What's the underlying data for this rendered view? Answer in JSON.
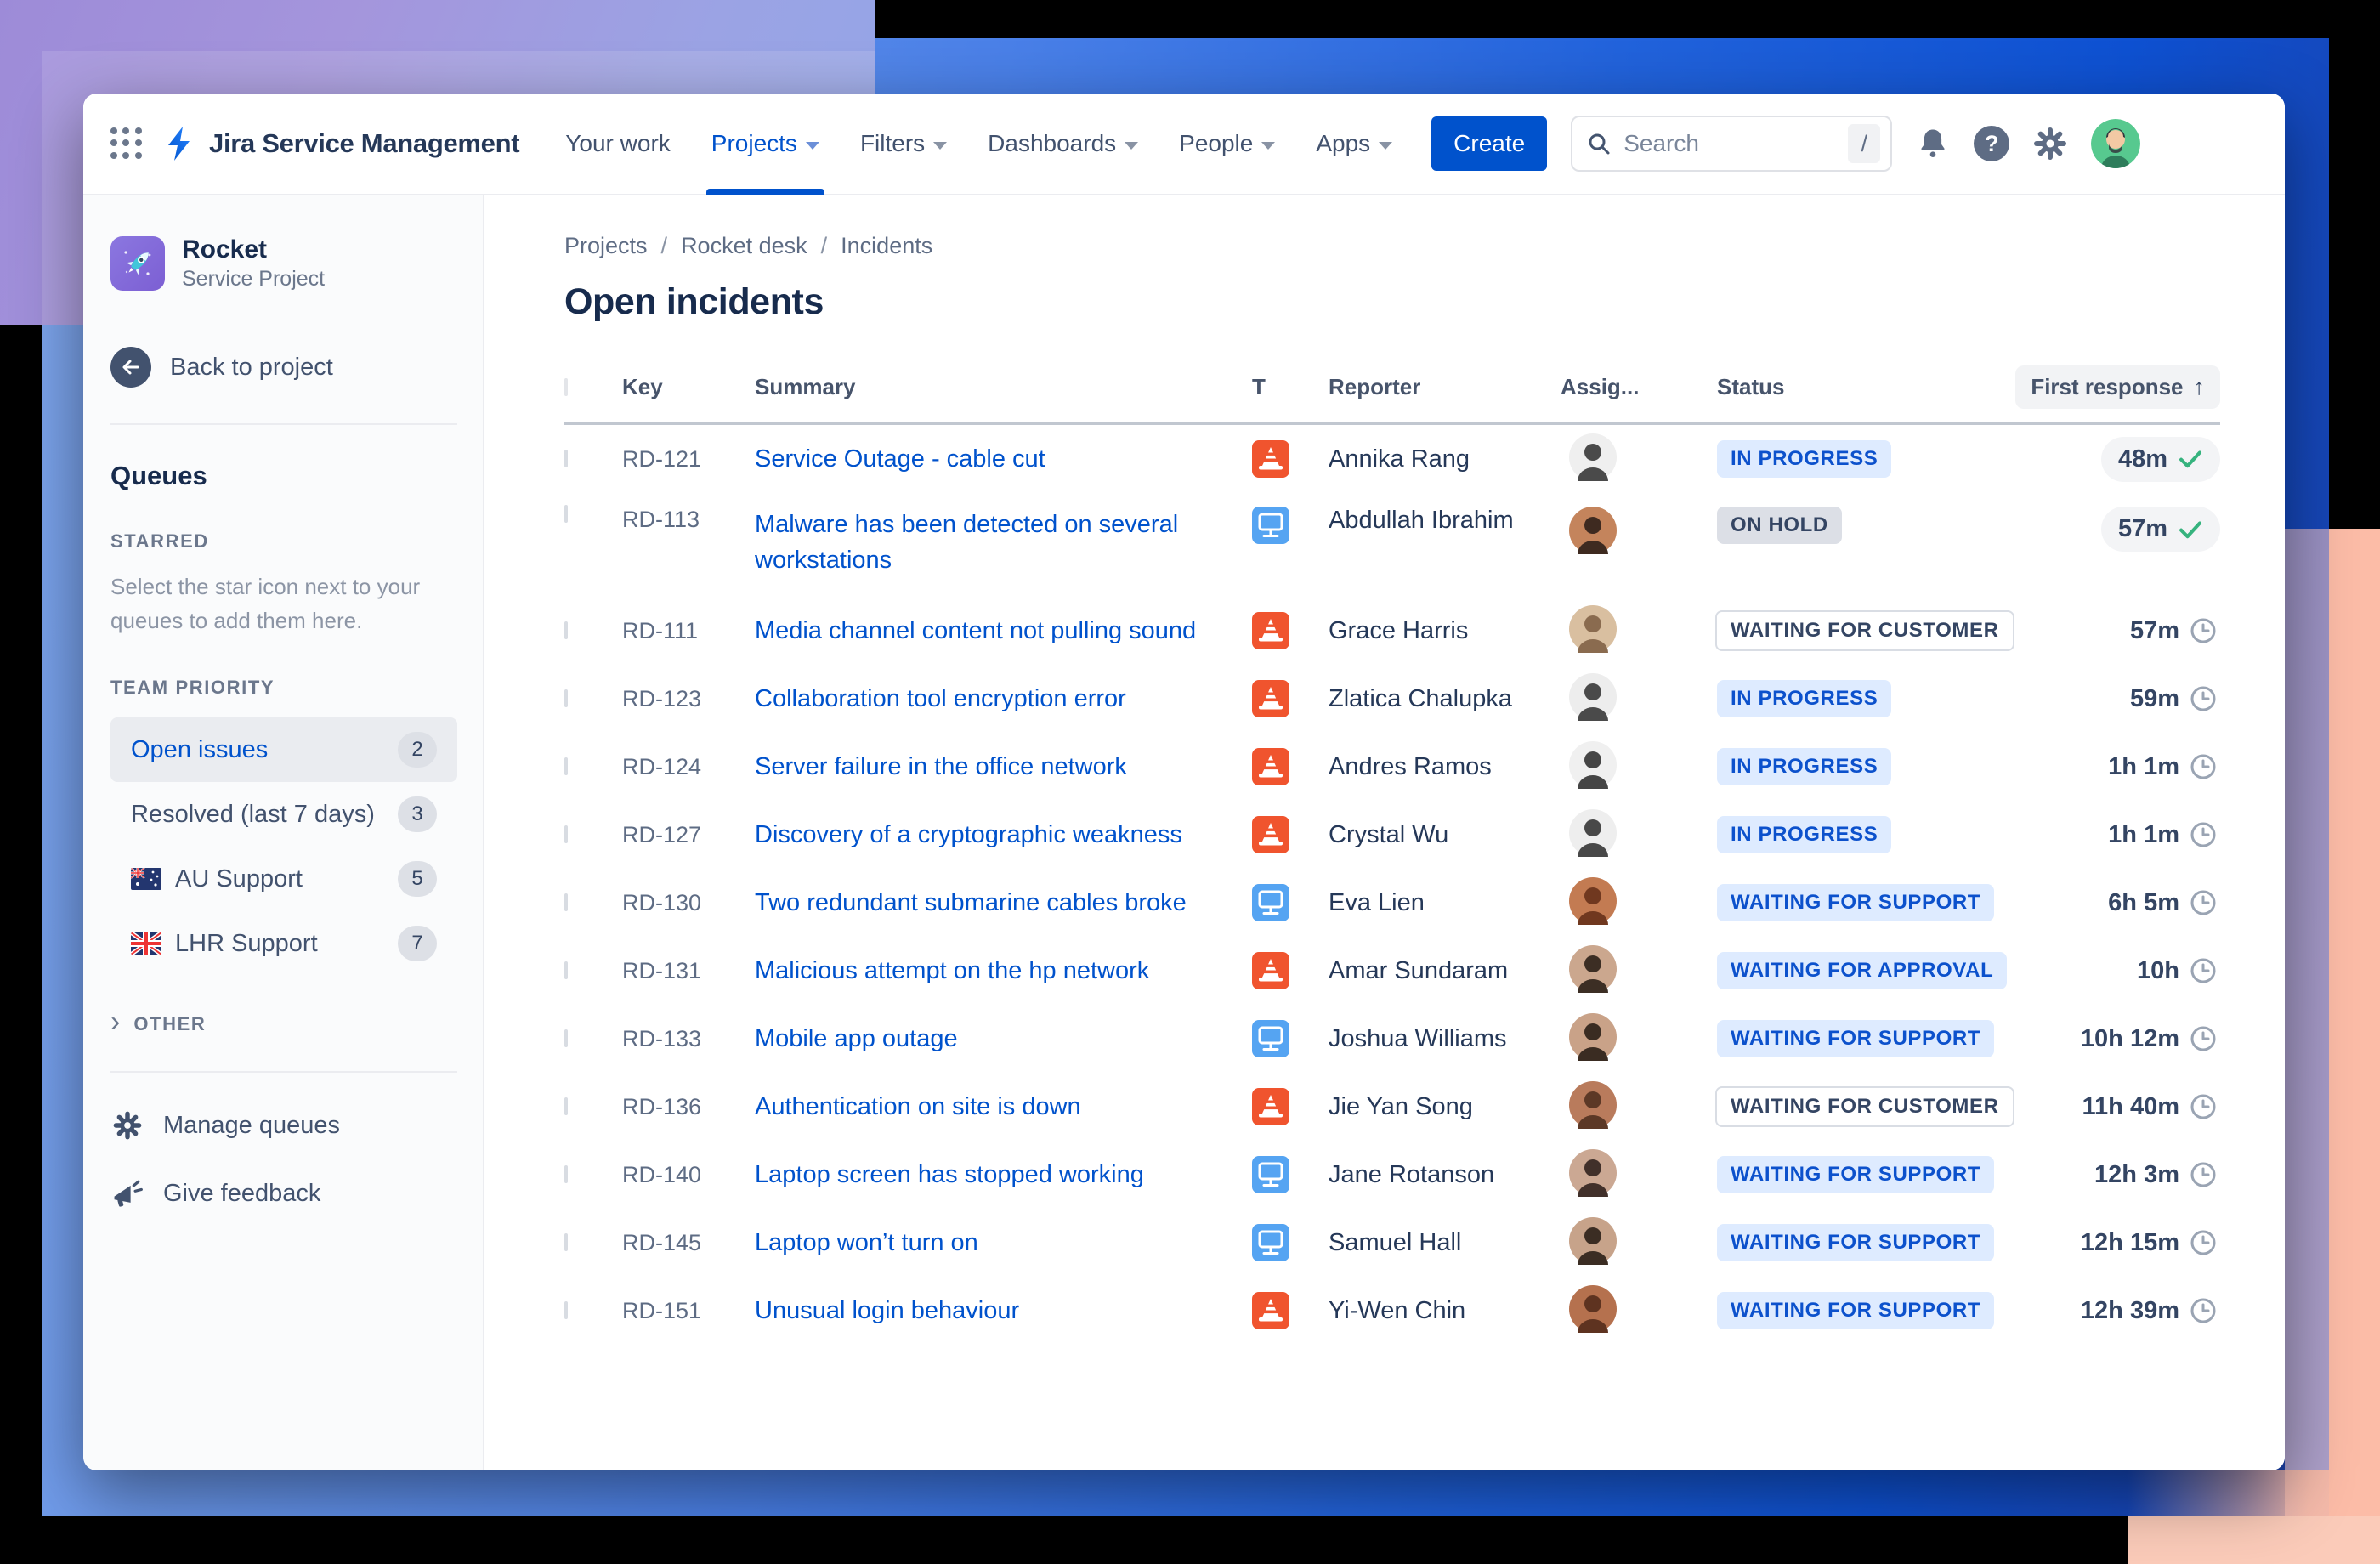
{
  "nav": {
    "logo_text": "Jira Service Management",
    "items": [
      {
        "label": "Your work",
        "chevron": false,
        "active": false
      },
      {
        "label": "Projects",
        "chevron": true,
        "active": true
      },
      {
        "label": "Filters",
        "chevron": true,
        "active": false
      },
      {
        "label": "Dashboards",
        "chevron": true,
        "active": false
      },
      {
        "label": "People",
        "chevron": true,
        "active": false
      },
      {
        "label": "Apps",
        "chevron": true,
        "active": false
      }
    ],
    "create_label": "Create",
    "search_placeholder": "Search",
    "search_shortcut": "/"
  },
  "sidebar": {
    "project_name": "Rocket",
    "project_type": "Service Project",
    "back_label": "Back to project",
    "queues_title": "Queues",
    "starred_label": "STARRED",
    "starred_hint": "Select the star icon next to your queues to add them here.",
    "team_priority_label": "TEAM PRIORITY",
    "items": [
      {
        "label": "Open issues",
        "count": "2",
        "selected": true,
        "flag": ""
      },
      {
        "label": "Resolved (last 7 days)",
        "count": "3",
        "selected": false,
        "flag": ""
      },
      {
        "label": "AU Support",
        "count": "5",
        "selected": false,
        "flag": "au"
      },
      {
        "label": "LHR Support",
        "count": "7",
        "selected": false,
        "flag": "uk"
      }
    ],
    "other_label": "OTHER",
    "manage_label": "Manage queues",
    "feedback_label": "Give feedback"
  },
  "breadcrumb": {
    "items": [
      "Projects",
      "Rocket desk",
      "Incidents"
    ],
    "separator": "/"
  },
  "page_title": "Open incidents",
  "table": {
    "headers": {
      "key": "Key",
      "summary": "Summary",
      "type": "T",
      "reporter": "Reporter",
      "assignee": "Assig...",
      "status": "Status",
      "first_response": "First response",
      "sort_arrow": "↑"
    },
    "rows": [
      {
        "key": "RD-121",
        "summary": "Service Outage - cable cut",
        "type": "incident",
        "reporter": "Annika Rang",
        "status": "IN PROGRESS",
        "status_style": "blue",
        "first_response": "48m",
        "response_state": "met",
        "two_line": false,
        "avatar_bg": "#EFEFEF",
        "avatar_fg": "#4A4A4A"
      },
      {
        "key": "RD-113",
        "summary": "Malware has been detected on several workstations",
        "type": "request",
        "reporter": "Abdullah Ibrahim",
        "status": "ON HOLD",
        "status_style": "gray",
        "first_response": "57m",
        "response_state": "met",
        "two_line": true,
        "avatar_bg": "#C4845C",
        "avatar_fg": "#3E2A20"
      },
      {
        "key": "RD-111",
        "summary": "Media channel content not pulling sound",
        "type": "incident",
        "reporter": "Grace Harris",
        "status": "WAITING FOR CUSTOMER",
        "status_style": "outline",
        "first_response": "57m",
        "response_state": "pending",
        "two_line": false,
        "avatar_bg": "#D9BFA0",
        "avatar_fg": "#8A6B4F"
      },
      {
        "key": "RD-123",
        "summary": "Collaboration tool encryption error",
        "type": "incident",
        "reporter": "Zlatica Chalupka",
        "status": "IN PROGRESS",
        "status_style": "blue",
        "first_response": "59m",
        "response_state": "pending",
        "two_line": false,
        "avatar_bg": "#EDEDED",
        "avatar_fg": "#4A4A4A"
      },
      {
        "key": "RD-124",
        "summary": "Server failure in the office network",
        "type": "incident",
        "reporter": "Andres Ramos",
        "status": "IN PROGRESS",
        "status_style": "blue",
        "first_response": "1h 1m",
        "response_state": "pending",
        "two_line": false,
        "avatar_bg": "#F0F0F0",
        "avatar_fg": "#454545"
      },
      {
        "key": "RD-127",
        "summary": "Discovery of a cryptographic weakness",
        "type": "incident",
        "reporter": "Crystal Wu",
        "status": "IN PROGRESS",
        "status_style": "blue",
        "first_response": "1h 1m",
        "response_state": "pending",
        "two_line": false,
        "avatar_bg": "#EEEEEE",
        "avatar_fg": "#484848"
      },
      {
        "key": "RD-130",
        "summary": "Two redundant submarine cables broke",
        "type": "request",
        "reporter": "Eva Lien",
        "status": "WAITING FOR SUPPORT",
        "status_style": "blue",
        "first_response": "6h 5m",
        "response_state": "pending",
        "two_line": false,
        "avatar_bg": "#C37B52",
        "avatar_fg": "#70381F"
      },
      {
        "key": "RD-131",
        "summary": "Malicious attempt on the hp network",
        "type": "incident",
        "reporter": "Amar Sundaram",
        "status": "WAITING FOR APPROVAL",
        "status_style": "blue",
        "first_response": "10h",
        "response_state": "pending",
        "two_line": false,
        "avatar_bg": "#CBA78E",
        "avatar_fg": "#3C2E24"
      },
      {
        "key": "RD-133",
        "summary": "Mobile app outage",
        "type": "request",
        "reporter": "Joshua Williams",
        "status": "WAITING FOR SUPPORT",
        "status_style": "blue",
        "first_response": "10h 12m",
        "response_state": "pending",
        "two_line": false,
        "avatar_bg": "#C9A288",
        "avatar_fg": "#3A2C22"
      },
      {
        "key": "RD-136",
        "summary": "Authentication on site is down",
        "type": "incident",
        "reporter": "Jie Yan Song",
        "status": "WAITING FOR CUSTOMER",
        "status_style": "outline",
        "first_response": "11h 40m",
        "response_state": "pending",
        "two_line": false,
        "avatar_bg": "#B97B5C",
        "avatar_fg": "#5C3826"
      },
      {
        "key": "RD-140",
        "summary": "Laptop screen has stopped working",
        "type": "request",
        "reporter": "Jane Rotanson",
        "status": "WAITING FOR SUPPORT",
        "status_style": "blue",
        "first_response": "12h 3m",
        "response_state": "pending",
        "two_line": false,
        "avatar_bg": "#CBA893",
        "avatar_fg": "#41302A"
      },
      {
        "key": "RD-145",
        "summary": "Laptop won’t turn on",
        "type": "request",
        "reporter": "Samuel Hall",
        "status": "WAITING FOR SUPPORT",
        "status_style": "blue",
        "first_response": "12h 15m",
        "response_state": "pending",
        "two_line": false,
        "avatar_bg": "#C7A38A",
        "avatar_fg": "#3B2D23"
      },
      {
        "key": "RD-151",
        "summary": "Unusual login behaviour",
        "type": "incident",
        "reporter": "Yi-Wen Chin",
        "status": "WAITING FOR SUPPORT",
        "status_style": "blue",
        "first_response": "12h 39m",
        "response_state": "pending",
        "two_line": false,
        "avatar_bg": "#B5714E",
        "avatar_fg": "#5E3320"
      }
    ]
  },
  "colors": {
    "accent": "#0052CC",
    "incident_icon": "#F0542E",
    "request_icon": "#55A4F2",
    "met_check": "#36B37E",
    "badge_blue_bg": "#DEEBFF",
    "badge_blue_text": "#0C51CC",
    "badge_gray_bg": "#DCDFE6",
    "link_blue": "#0052CC",
    "bg_purple": "#9D8BD8",
    "bg_blue": "#0E51D2",
    "bg_salmon": "#FCBCA7"
  }
}
